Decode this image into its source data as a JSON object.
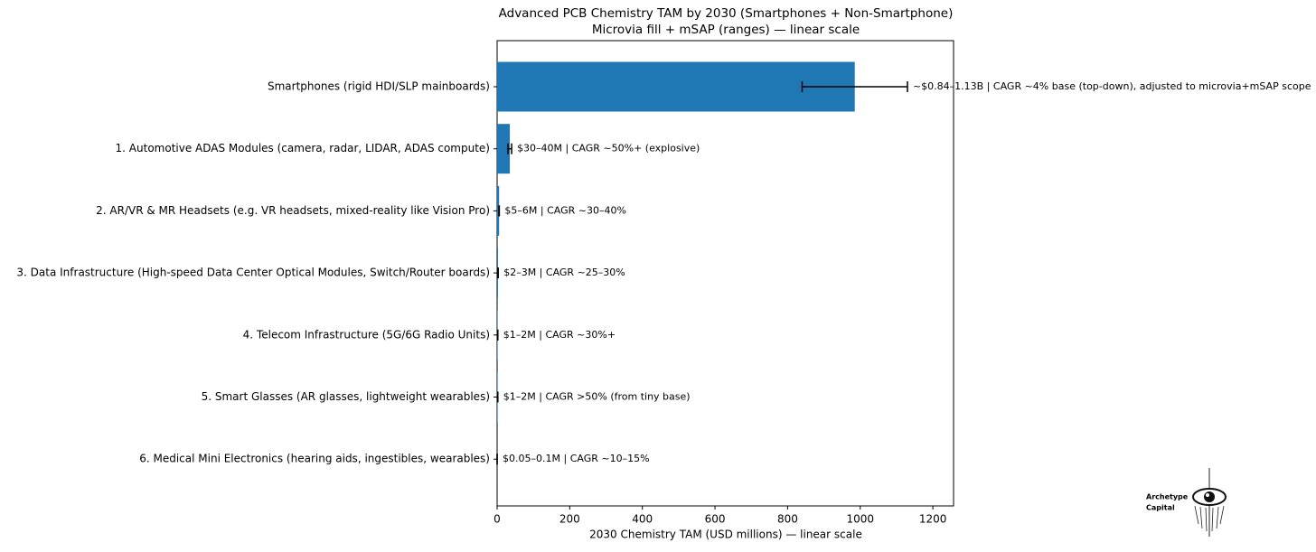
{
  "chart_data": {
    "type": "barh",
    "title": "Advanced PCB Chemistry TAM by 2030 (Smartphones + Non-Smartphone)",
    "subtitle": "Microvia fill + mSAP (ranges) — linear scale",
    "x_label": "2030 Chemistry TAM (USD millions) — linear scale",
    "categories": [
      "Smartphones (rigid HDI/SLP mainboards)",
      "1. Automotive ADAS Modules (camera, radar, LIDAR, ADAS compute)",
      "2. AR/VR & MR Headsets (e.g. VR headsets, mixed-reality like Vision Pro)",
      "3. Data Infrastructure (High-speed Data Center Optical Modules, Switch/Router boards)",
      "4. Telecom Infrastructure (5G/6G Radio Units)",
      "5. Smart Glasses (AR glasses, lightweight wearables)",
      "6. Medical Mini Electronics (hearing aids, ingestibles, wearables)"
    ],
    "values": [
      985,
      35,
      5.5,
      2.5,
      1.5,
      1.5,
      0.075
    ],
    "errors": [
      145,
      5,
      0.5,
      0.5,
      0.5,
      0.5,
      0.025
    ],
    "annotations": [
      "~$0.84–1.13B | CAGR ~4% base (top-down), adjusted to microvia+mSAP scope",
      "$30–40M | CAGR ~50%+ (explosive)",
      "$5–6M | CAGR ~30–40%",
      "$2–3M | CAGR ~25–30%",
      "$1–2M | CAGR ~30%+",
      "$1–2M | CAGR >50% (from tiny base)",
      "$0.05–0.1M | CAGR ~10–15%"
    ],
    "color": "#1f77b4",
    "xlim": [
      0,
      1257
    ],
    "xticks": [
      0,
      200,
      400,
      600,
      800,
      1000,
      1200
    ],
    "logo": [
      "Archetype",
      "Capital"
    ]
  }
}
